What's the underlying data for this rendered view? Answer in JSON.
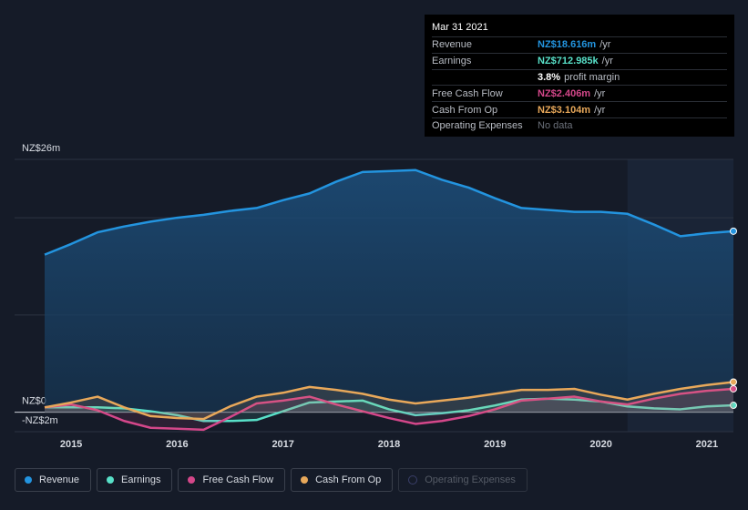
{
  "chart_data": {
    "type": "line",
    "x": [
      2014.75,
      2015.0,
      2015.25,
      2015.5,
      2015.75,
      2016.0,
      2016.25,
      2016.5,
      2016.75,
      2017.0,
      2017.25,
      2017.5,
      2017.75,
      2018.0,
      2018.25,
      2018.5,
      2018.75,
      2019.0,
      2019.25,
      2019.5,
      2019.75,
      2020.0,
      2020.25,
      2020.5,
      2020.75,
      2021.0,
      2021.25
    ],
    "xlim": [
      2014.75,
      2021.25
    ],
    "xticks": [
      2015,
      2016,
      2017,
      2018,
      2019,
      2020,
      2021
    ],
    "ylim": [
      -2,
      26
    ],
    "yticks": [
      {
        "value": -2,
        "label": "-NZ$2m"
      },
      {
        "value": 0,
        "label": "NZ$0"
      },
      {
        "value": 10,
        "label": null
      },
      {
        "value": 20,
        "label": null
      },
      {
        "value": 26,
        "label": "NZ$26m"
      }
    ],
    "grid": true,
    "series": [
      {
        "name": "Revenue",
        "color": "#2394df",
        "values": [
          16.2,
          17.3,
          18.5,
          19.1,
          19.6,
          20.0,
          20.3,
          20.7,
          21.0,
          21.8,
          22.5,
          23.7,
          24.7,
          24.8,
          24.9,
          23.9,
          23.1,
          22.0,
          21.0,
          20.8,
          20.6,
          20.6,
          20.4,
          19.3,
          18.1,
          18.4,
          18.616
        ]
      },
      {
        "name": "Earnings",
        "color": "#58e0c8",
        "values": [
          0.5,
          0.5,
          0.5,
          0.4,
          0.1,
          -0.3,
          -0.9,
          -0.9,
          -0.8,
          0.1,
          1.0,
          1.1,
          1.2,
          0.3,
          -0.3,
          -0.1,
          0.2,
          0.7,
          1.3,
          1.4,
          1.3,
          1.1,
          0.6,
          0.4,
          0.3,
          0.6,
          0.713
        ]
      },
      {
        "name": "Free Cash Flow",
        "color": "#d4478a",
        "values": [
          0.5,
          0.8,
          0.2,
          -0.9,
          -1.6,
          -1.7,
          -1.8,
          -0.5,
          0.9,
          1.2,
          1.6,
          0.8,
          0.1,
          -0.6,
          -1.2,
          -0.9,
          -0.4,
          0.3,
          1.2,
          1.4,
          1.6,
          1.1,
          0.8,
          1.4,
          1.9,
          2.2,
          2.406
        ]
      },
      {
        "name": "Cash From Op",
        "color": "#e8a85a",
        "values": [
          0.5,
          1.0,
          1.6,
          0.5,
          -0.4,
          -0.6,
          -0.7,
          0.6,
          1.6,
          2.0,
          2.6,
          2.3,
          1.9,
          1.3,
          0.9,
          1.2,
          1.5,
          1.9,
          2.3,
          2.3,
          2.4,
          1.8,
          1.3,
          1.9,
          2.4,
          2.8,
          3.104
        ]
      },
      {
        "name": "Operating Expenses",
        "color": "#3a3f6a",
        "values": [
          null,
          null,
          null,
          null,
          null,
          null,
          null,
          null,
          null,
          null,
          null,
          null,
          null,
          null,
          null,
          null,
          null,
          null,
          null,
          null,
          null,
          null,
          null,
          null,
          null,
          null,
          null
        ]
      }
    ],
    "tooltip": {
      "date": "Mar 31 2021",
      "rows": [
        {
          "label": "Revenue",
          "value": "NZ$18.616m",
          "unit": "/yr",
          "color": "#2394df"
        },
        {
          "label": "Earnings",
          "value": "NZ$712.985k",
          "unit": "/yr",
          "color": "#58e0c8"
        },
        {
          "label": null,
          "value": "3.8%",
          "unit": "profit margin",
          "color": "#ffffff"
        },
        {
          "label": "Free Cash Flow",
          "value": "NZ$2.406m",
          "unit": "/yr",
          "color": "#d4478a"
        },
        {
          "label": "Cash From Op",
          "value": "NZ$3.104m",
          "unit": "/yr",
          "color": "#e8a85a"
        },
        {
          "label": "Operating Expenses",
          "value": "No data",
          "unit": null,
          "color": "#6b707a"
        }
      ]
    }
  }
}
